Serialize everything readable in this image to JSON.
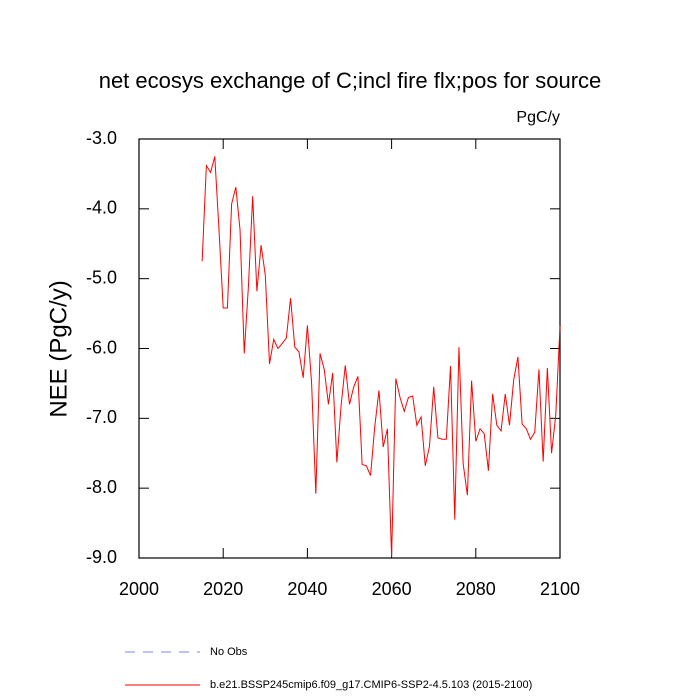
{
  "chart_data": {
    "type": "line",
    "title": "net ecosys exchange of C;incl fire flx;pos for source",
    "units": "PgC/y",
    "ylabel": "NEE  (PgC/y)",
    "x": [
      2015,
      2016,
      2017,
      2018,
      2019,
      2020,
      2021,
      2022,
      2023,
      2024,
      2025,
      2026,
      2027,
      2028,
      2029,
      2030,
      2031,
      2032,
      2033,
      2034,
      2035,
      2036,
      2037,
      2038,
      2039,
      2040,
      2041,
      2042,
      2043,
      2044,
      2045,
      2046,
      2047,
      2048,
      2049,
      2050,
      2051,
      2052,
      2053,
      2054,
      2055,
      2056,
      2057,
      2058,
      2059,
      2060,
      2061,
      2062,
      2063,
      2064,
      2065,
      2066,
      2067,
      2068,
      2069,
      2070,
      2071,
      2072,
      2073,
      2074,
      2075,
      2076,
      2077,
      2078,
      2079,
      2080,
      2081,
      2082,
      2083,
      2084,
      2085,
      2086,
      2087,
      2088,
      2089,
      2090,
      2091,
      2092,
      2093,
      2094,
      2095,
      2096,
      2097,
      2098,
      2099,
      2100
    ],
    "series": [
      {
        "name": "b.e21.BSSP245cmip6.f09_g17.CMIP6-SSP2-4.5.103 (2015-2100)",
        "color": "#ff0000",
        "values": [
          -4.75,
          -3.38,
          -3.48,
          -3.25,
          -4.3,
          -5.42,
          -5.42,
          -3.93,
          -3.69,
          -4.3,
          -6.07,
          -5.1,
          -3.82,
          -5.18,
          -4.52,
          -4.95,
          -6.22,
          -5.87,
          -6.0,
          -5.93,
          -5.85,
          -5.28,
          -5.98,
          -6.05,
          -6.42,
          -5.67,
          -6.5,
          -8.08,
          -6.07,
          -6.3,
          -6.8,
          -6.35,
          -7.63,
          -6.82,
          -6.24,
          -6.8,
          -6.55,
          -6.4,
          -7.66,
          -7.68,
          -7.82,
          -7.12,
          -6.6,
          -7.41,
          -7.15,
          -8.98,
          -6.43,
          -6.7,
          -6.9,
          -6.7,
          -6.68,
          -7.1,
          -6.98,
          -7.68,
          -7.4,
          -6.55,
          -7.28,
          -7.3,
          -7.3,
          -6.25,
          -8.45,
          -5.98,
          -7.65,
          -8.1,
          -6.46,
          -7.33,
          -7.15,
          -7.22,
          -7.75,
          -6.65,
          -7.1,
          -7.18,
          -6.65,
          -7.1,
          -6.45,
          -6.12,
          -7.08,
          -7.15,
          -7.3,
          -7.2,
          -6.3,
          -7.62,
          -6.28,
          -7.5,
          -6.95,
          -5.68
        ]
      }
    ],
    "reference": {
      "name": "No Obs",
      "color": "#8080ff",
      "dashed": true
    },
    "xlim": [
      2000,
      2100
    ],
    "xticks": [
      2000,
      2020,
      2040,
      2060,
      2080,
      2100
    ],
    "ylim": [
      -9,
      -3
    ],
    "yticks": [
      {
        "value": -9,
        "label": "-9.0"
      },
      {
        "value": -8,
        "label": "-8.0"
      },
      {
        "value": -7,
        "label": "-7.0"
      },
      {
        "value": -6,
        "label": "-6.0"
      },
      {
        "value": -5,
        "label": "-5.0"
      },
      {
        "value": -4,
        "label": "-4.0"
      },
      {
        "value": -3,
        "label": "-3.0"
      }
    ]
  }
}
